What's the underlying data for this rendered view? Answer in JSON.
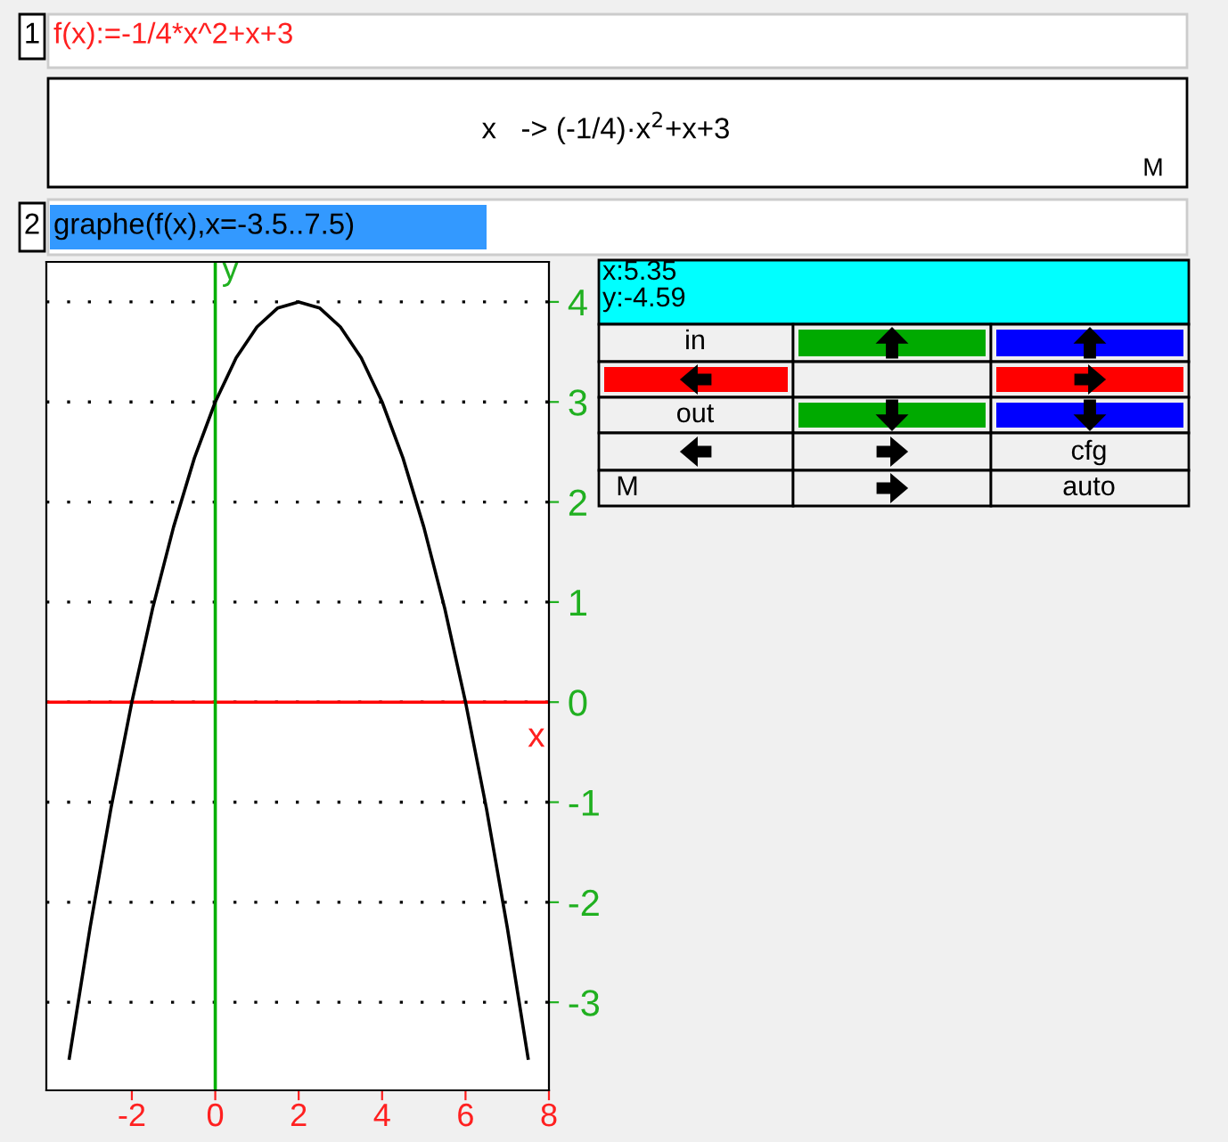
{
  "chart_data": {
    "type": "line",
    "xlabel": "x",
    "ylabel": "y",
    "x": [
      -3.5,
      -3,
      -2.5,
      -2,
      -1.5,
      -1,
      -0.5,
      0,
      0.5,
      1,
      1.5,
      2,
      2.5,
      3,
      3.5,
      4,
      4.5,
      5,
      5.5,
      6,
      6.5,
      7,
      7.5
    ],
    "series": [
      {
        "color": "#000000",
        "values": [
          -3.56,
          -2.25,
          -1.06,
          0,
          0.94,
          1.75,
          2.44,
          3,
          3.44,
          3.75,
          3.94,
          4,
          3.94,
          3.75,
          3.44,
          3,
          2.44,
          1.75,
          0.94,
          0,
          -1.06,
          -2.25,
          -3.56
        ]
      }
    ],
    "xlim": [
      -4.05,
      8
    ],
    "ylim": [
      -3.88,
      4.4
    ],
    "xticks": [
      -2,
      0,
      2,
      4,
      6,
      8
    ],
    "yticks": [
      -3,
      -2,
      -1,
      0,
      1,
      2,
      3,
      4
    ],
    "grid": "y",
    "ref_lines": [
      {
        "axis": "y",
        "value": 0,
        "color": "#ff0000"
      },
      {
        "axis": "x",
        "value": 0,
        "color": "#00b000"
      }
    ],
    "annotations": [
      "1",
      "f(x):=-1/4*x^2+x+3",
      "x   -> (-1/4)·x$^{2}$+x+3",
      "M",
      "2",
      "graphe(f(x),x=-3.5..7.5)",
      "x:5.35",
      "y:-4.59",
      "in",
      "out",
      "cfg",
      "M",
      "auto"
    ]
  }
}
